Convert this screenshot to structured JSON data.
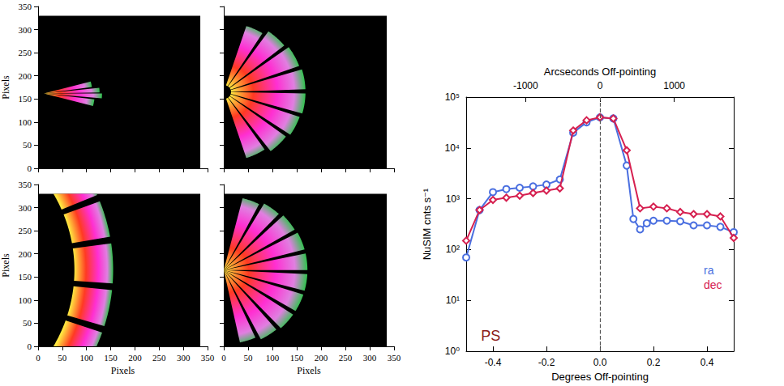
{
  "chart_data": [
    {
      "type": "image",
      "xlim": [
        0,
        350
      ],
      "ylim": [
        0,
        350
      ],
      "xticks": [
        0,
        50,
        100,
        150,
        200,
        250,
        300,
        350
      ],
      "yticks": [
        0,
        50,
        100,
        150,
        200,
        250,
        300,
        350
      ],
      "tick_labels": "y",
      "ylabel": "Pixels",
      "image_extent": [
        335,
        330
      ],
      "wedges": [
        {
          "center": [
            12,
            162
          ],
          "r": [
            0,
            105
          ],
          "angles": [
            -15,
            -7
          ]
        },
        {
          "center": [
            12,
            162
          ],
          "r": [
            0,
            120
          ],
          "angles": [
            -5,
            0
          ]
        },
        {
          "center": [
            12,
            162
          ],
          "r": [
            0,
            115
          ],
          "angles": [
            1,
            6
          ]
        },
        {
          "center": [
            12,
            162
          ],
          "r": [
            0,
            100
          ],
          "angles": [
            8,
            15
          ]
        }
      ]
    },
    {
      "type": "image",
      "xlim": [
        0,
        350
      ],
      "ylim": [
        0,
        350
      ],
      "xticks": [
        0,
        50,
        100,
        150,
        200,
        250,
        300,
        350
      ],
      "yticks": [
        0,
        50,
        100,
        150,
        200,
        250,
        300,
        350
      ],
      "tick_labels": false,
      "image_extent": [
        335,
        330
      ],
      "wedges": [
        {
          "center": [
            0,
            165
          ],
          "r": [
            15,
            150
          ],
          "angles": [
            -72,
            -56
          ]
        },
        {
          "center": [
            0,
            165
          ],
          "r": [
            15,
            160
          ],
          "angles": [
            -53,
            -37
          ]
        },
        {
          "center": [
            0,
            165
          ],
          "r": [
            15,
            165
          ],
          "angles": [
            -34,
            -19
          ]
        },
        {
          "center": [
            0,
            165
          ],
          "r": [
            15,
            168
          ],
          "angles": [
            -16,
            -1
          ]
        },
        {
          "center": [
            0,
            165
          ],
          "r": [
            15,
            168
          ],
          "angles": [
            2,
            17
          ]
        },
        {
          "center": [
            0,
            165
          ],
          "r": [
            15,
            165
          ],
          "angles": [
            20,
            36
          ]
        },
        {
          "center": [
            0,
            165
          ],
          "r": [
            15,
            160
          ],
          "angles": [
            39,
            55
          ]
        },
        {
          "center": [
            0,
            165
          ],
          "r": [
            15,
            150
          ],
          "angles": [
            58,
            72
          ]
        }
      ]
    },
    {
      "type": "image",
      "xlim": [
        0,
        350
      ],
      "ylim": [
        0,
        350
      ],
      "xticks": [
        0,
        50,
        100,
        150,
        200,
        250,
        300,
        350
      ],
      "yticks": [
        0,
        50,
        100,
        150,
        200,
        250,
        300,
        350
      ],
      "tick_labels": true,
      "xlabel": "Pixels",
      "ylabel": "Pixels",
      "image_extent": [
        335,
        330
      ],
      "wedges": [
        {
          "center": [
            -260,
            165
          ],
          "r": [
            335,
            415
          ],
          "angles": [
            -32,
            -19
          ]
        },
        {
          "center": [
            -260,
            165
          ],
          "r": [
            335,
            415
          ],
          "angles": [
            -17,
            -6
          ]
        },
        {
          "center": [
            -260,
            165
          ],
          "r": [
            335,
            415
          ],
          "angles": [
            -4,
            8
          ]
        },
        {
          "center": [
            -260,
            165
          ],
          "r": [
            335,
            415
          ],
          "angles": [
            10,
            21
          ]
        },
        {
          "center": [
            -260,
            165
          ],
          "r": [
            335,
            415
          ],
          "angles": [
            23,
            34
          ]
        }
      ]
    },
    {
      "type": "image",
      "xlim": [
        0,
        350
      ],
      "ylim": [
        0,
        350
      ],
      "xticks": [
        0,
        50,
        100,
        150,
        200,
        250,
        300,
        350
      ],
      "yticks": [
        0,
        50,
        100,
        150,
        200,
        250,
        300,
        350
      ],
      "tick_labels": "x",
      "xlabel": "Pixels",
      "image_extent": [
        335,
        330
      ],
      "wedges": [
        {
          "center": [
            0,
            165
          ],
          "r": [
            0,
            160
          ],
          "angles": [
            -78,
            -66
          ]
        },
        {
          "center": [
            0,
            165
          ],
          "r": [
            0,
            168
          ],
          "angles": [
            -63,
            -50
          ]
        },
        {
          "center": [
            0,
            165
          ],
          "r": [
            0,
            172
          ],
          "angles": [
            -47,
            -34
          ]
        },
        {
          "center": [
            0,
            165
          ],
          "r": [
            0,
            172
          ],
          "angles": [
            -31,
            -18
          ]
        },
        {
          "center": [
            0,
            165
          ],
          "r": [
            0,
            172
          ],
          "angles": [
            -15,
            -3
          ]
        },
        {
          "center": [
            0,
            165
          ],
          "r": [
            0,
            172
          ],
          "angles": [
            0,
            12
          ]
        },
        {
          "center": [
            0,
            165
          ],
          "r": [
            0,
            172
          ],
          "angles": [
            15,
            28
          ]
        },
        {
          "center": [
            0,
            165
          ],
          "r": [
            0,
            170
          ],
          "angles": [
            31,
            44
          ]
        },
        {
          "center": [
            0,
            165
          ],
          "r": [
            0,
            166
          ],
          "angles": [
            47,
            60
          ]
        },
        {
          "center": [
            0,
            165
          ],
          "r": [
            0,
            160
          ],
          "angles": [
            63,
            76
          ]
        }
      ]
    },
    {
      "type": "line",
      "xlabel": "Degrees Off-pointing",
      "ylabel": "NuSIM cnts s⁻¹",
      "x2label": "Arcseconds Off-pointing",
      "xlim": [
        -0.5,
        0.5
      ],
      "xticks": [
        -0.4,
        -0.2,
        {
          "value": 0,
          "label": "0.0"
        },
        0.2,
        0.4
      ],
      "x2lim": [
        -1800,
        1800
      ],
      "x2ticks": [
        -1000,
        0,
        1000
      ],
      "ylim": [
        1,
        100000
      ],
      "yticks": [
        {
          "value": 1,
          "label": "10⁰"
        },
        {
          "value": 10,
          "label": "10¹"
        },
        {
          "value": 100,
          "label": "10²"
        },
        {
          "value": 1000,
          "label": "10³"
        },
        {
          "value": 10000,
          "label": "10⁴"
        },
        {
          "value": 100000,
          "label": "10⁵"
        }
      ],
      "log": "y",
      "legend": "right",
      "reference_lines": [
        {
          "x": 0,
          "line_style": "dashed"
        }
      ],
      "annotations": [
        {
          "text": "PS",
          "x": -0.46,
          "y": 2
        }
      ],
      "series": [
        {
          "name": "ra",
          "color": "#4a6fe0",
          "marker": "circle",
          "x": [
            -0.5,
            -0.45,
            -0.4,
            -0.35,
            -0.3,
            -0.25,
            -0.2,
            -0.15,
            -0.1,
            -0.05,
            0,
            0.05,
            0.1,
            0.125,
            0.15,
            0.175,
            0.2,
            0.25,
            0.3,
            0.35,
            0.4,
            0.45,
            0.5
          ],
          "values": [
            70,
            600,
            1350,
            1550,
            1650,
            1750,
            1900,
            2400,
            20000,
            32000,
            40000,
            38000,
            4500,
            400,
            250,
            330,
            370,
            370,
            360,
            300,
            300,
            280,
            220
          ]
        },
        {
          "name": "dec",
          "color": "#d62050",
          "marker": "diamond",
          "x": [
            -0.5,
            -0.45,
            -0.4,
            -0.35,
            -0.3,
            -0.25,
            -0.2,
            -0.15,
            -0.1,
            -0.05,
            0,
            0.05,
            0.1,
            0.15,
            0.2,
            0.25,
            0.3,
            0.35,
            0.4,
            0.45,
            0.5
          ],
          "values": [
            150,
            600,
            950,
            1050,
            1150,
            1300,
            1450,
            1600,
            22000,
            35000,
            40000,
            38000,
            9000,
            650,
            700,
            650,
            550,
            500,
            500,
            450,
            170
          ]
        }
      ]
    }
  ]
}
